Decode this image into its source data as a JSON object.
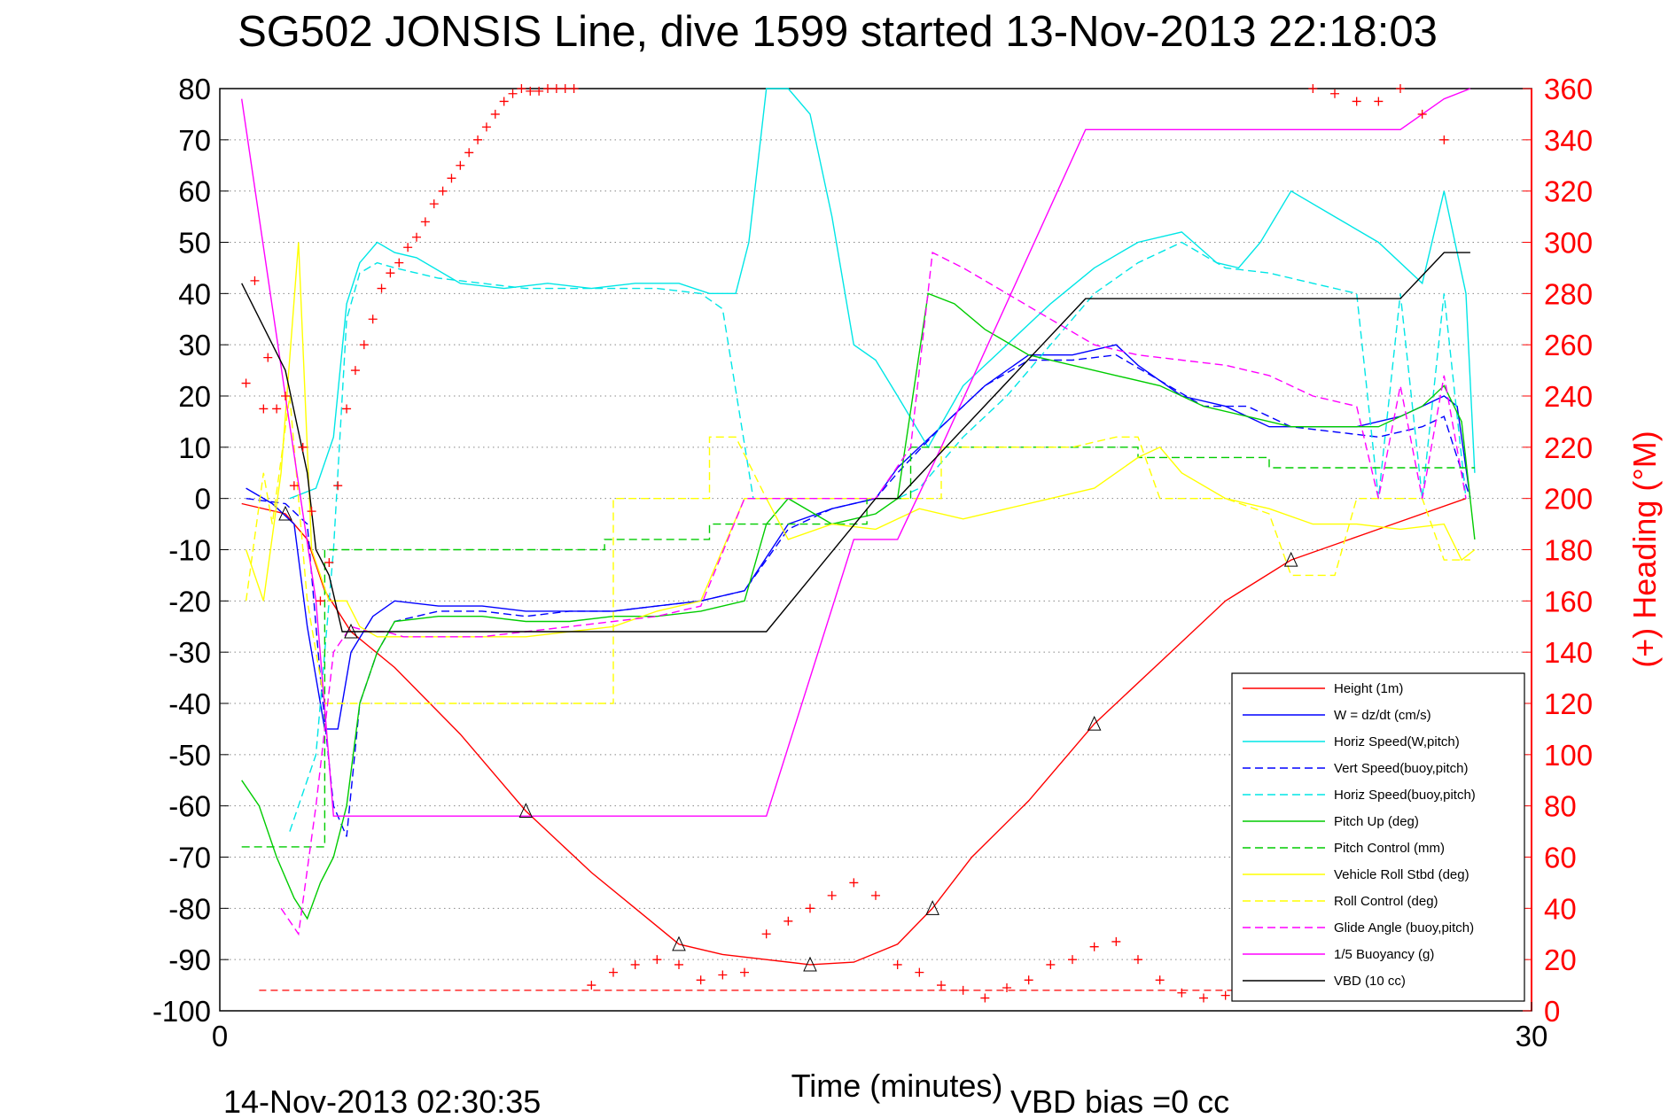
{
  "chart_data": {
    "type": "line",
    "title": "SG502 JONSIS Line, dive 1599 started 13-Nov-2013 22:18:03",
    "xlabel": "Time (minutes)",
    "ylabel_right": "(+) Heading (°M)",
    "footer_left": "14-Nov-2013 02:30:35",
    "footer_right": "VBD bias =0 cc",
    "xlim": [
      0,
      30
    ],
    "ylim": [
      -100,
      80
    ],
    "ylim_right": [
      0,
      360
    ],
    "x_ticks": [
      "0",
      "30"
    ],
    "y_ticks": [
      "80",
      "70",
      "60",
      "50",
      "40",
      "30",
      "20",
      "10",
      "0",
      "-10",
      "-20",
      "-30",
      "-40",
      "-50",
      "-60",
      "-70",
      "-80",
      "-90",
      "-100"
    ],
    "y_ticks_right": [
      "360",
      "340",
      "320",
      "300",
      "280",
      "260",
      "240",
      "220",
      "200",
      "180",
      "160",
      "140",
      "120",
      "100",
      "80",
      "60",
      "40",
      "20",
      "0"
    ],
    "grid": "horizontal dotted",
    "legend_position": "bottom-right",
    "colors": {
      "axis_right": "#ff0000",
      "height": "#ff0000",
      "w": "#0000ff",
      "horiz": "#00e6e6",
      "pitch": "#00cc00",
      "roll": "#ffff00",
      "glide": "#ff00ff",
      "buoyancy": "#ff00ff",
      "vbd": "#000000"
    },
    "legend": [
      {
        "label": "Height (1m)",
        "color": "#ff0000",
        "dash": "solid"
      },
      {
        "label": "W = dz/dt (cm/s)",
        "color": "#0000ff",
        "dash": "solid"
      },
      {
        "label": "Horiz Speed(W,pitch)",
        "color": "#00e6e6",
        "dash": "solid"
      },
      {
        "label": "Vert Speed(buoy,pitch)",
        "color": "#0000ff",
        "dash": "dashed"
      },
      {
        "label": "Horiz Speed(buoy,pitch)",
        "color": "#00e6e6",
        "dash": "dashed"
      },
      {
        "label": "Pitch Up (deg)",
        "color": "#00cc00",
        "dash": "solid"
      },
      {
        "label": "Pitch Control (mm)",
        "color": "#00cc00",
        "dash": "dashed"
      },
      {
        "label": "Vehicle Roll Stbd (deg)",
        "color": "#ffff00",
        "dash": "solid"
      },
      {
        "label": "Roll Control (deg)",
        "color": "#ffff00",
        "dash": "dashed"
      },
      {
        "label": "Glide Angle (buoy,pitch)",
        "color": "#ff00ff",
        "dash": "dashed"
      },
      {
        "label": "1/5 Buoyancy (g)",
        "color": "#ff00ff",
        "dash": "solid"
      },
      {
        "label": "VBD (10 cc)",
        "color": "#000000",
        "dash": "solid"
      }
    ],
    "series": [
      {
        "name": "Height (1m)",
        "color": "#ff0000",
        "dash": "solid",
        "x": [
          0.5,
          1.5,
          2.0,
          2.4,
          3.0,
          4.0,
          5.5,
          7.0,
          8.5,
          9.5,
          10.5,
          11.5,
          12.5,
          13.5,
          14.5,
          15.5,
          16.3,
          17.2,
          18.5,
          20.0,
          21.5,
          23.0,
          24.5,
          26.5,
          28.5
        ],
        "y": [
          -1,
          -3,
          -8,
          -18,
          -26,
          -33,
          -46,
          -61,
          -73,
          -80,
          -87,
          -89,
          -90,
          -91,
          -90.5,
          -87,
          -80,
          -70,
          -59,
          -44,
          -32,
          -20,
          -12,
          -6,
          0
        ]
      },
      {
        "name": "W = dz/dt (cm/s)",
        "color": "#0000ff",
        "dash": "solid",
        "x": [
          0.6,
          1.2,
          1.7,
          2.0,
          2.4,
          2.7,
          3.0,
          3.5,
          4.0,
          5.0,
          6.0,
          7.0,
          8.0,
          9.0,
          10.0,
          11.0,
          12.0,
          13.0,
          14.0,
          15.0,
          15.5,
          16.5,
          17.5,
          18.5,
          19.5,
          20.5,
          21.0,
          22.0,
          23.0,
          24.0,
          25.0,
          26.0,
          27.0,
          27.5,
          28.0,
          28.3,
          28.6
        ],
        "y": [
          2,
          -1,
          -5,
          -25,
          -45,
          -45,
          -30,
          -23,
          -20,
          -21,
          -21,
          -22,
          -22,
          -22,
          -21,
          -20,
          -18,
          -5,
          -2,
          0,
          6,
          14,
          22,
          28,
          28,
          30,
          26,
          20,
          18,
          14,
          14,
          14,
          16,
          18,
          20,
          18,
          0
        ]
      },
      {
        "name": "Horiz Speed(W,pitch)",
        "color": "#00e6e6",
        "dash": "solid",
        "x": [
          1.6,
          2.2,
          2.6,
          2.9,
          3.2,
          3.6,
          4.0,
          4.5,
          5.5,
          6.5,
          7.5,
          8.5,
          9.5,
          10.5,
          11.2,
          11.8,
          12.1,
          12.5,
          13.0,
          13.5,
          14.0,
          14.5,
          15.0,
          15.5,
          16.2,
          17.0,
          18.0,
          19.0,
          20.0,
          21.0,
          22.0,
          22.8,
          23.3,
          23.8,
          24.5,
          25.5,
          26.5,
          27.5,
          28.0,
          28.5,
          28.7
        ],
        "y": [
          0,
          2,
          12,
          38,
          46,
          50,
          48,
          47,
          42,
          41,
          42,
          41,
          42,
          42,
          40,
          40,
          50,
          80,
          80,
          75,
          55,
          30,
          27,
          20,
          10,
          22,
          30,
          38,
          45,
          50,
          52,
          46,
          45,
          50,
          60,
          55,
          50,
          42,
          60,
          40,
          5
        ]
      },
      {
        "name": "Vert Speed(buoy,pitch)",
        "color": "#0000ff",
        "dash": "dashed",
        "x": [
          0.6,
          1.5,
          2.0,
          2.3,
          2.6,
          2.9,
          3.2,
          3.6,
          4.0,
          5.0,
          6.0,
          7.0,
          8.0,
          9.0,
          10.0,
          11.0,
          12.0,
          13.0,
          14.0,
          15.0,
          15.5,
          16.5,
          17.5,
          18.5,
          19.5,
          20.5,
          21.5,
          22.5,
          23.5,
          24.5,
          25.5,
          26.5,
          27.5,
          28.0,
          28.6
        ],
        "y": [
          0,
          -1,
          -5,
          -35,
          -60,
          -66,
          -40,
          -30,
          -24,
          -22,
          -22,
          -23,
          -22,
          -22,
          -21,
          -20,
          -18,
          -6,
          -2,
          0,
          5,
          14,
          22,
          27,
          27,
          28,
          23,
          18,
          18,
          14,
          13,
          12,
          14,
          16,
          0
        ]
      },
      {
        "name": "Horiz Speed(buoy,pitch)",
        "color": "#00e6e6",
        "dash": "dashed",
        "x": [
          1.6,
          2.2,
          2.6,
          2.9,
          3.2,
          3.6,
          4.0,
          5.0,
          6.0,
          7.0,
          8.0,
          9.0,
          10.0,
          11.0,
          11.5,
          12.2,
          13.0,
          14.0,
          15.0,
          15.5,
          16.0,
          17.0,
          18.0,
          19.0,
          20.0,
          21.0,
          22.0,
          23.0,
          24.0,
          25.0,
          26.0,
          26.5,
          27.0,
          27.5,
          28.0,
          28.5
        ],
        "y": [
          -65,
          -50,
          -10,
          35,
          44,
          46,
          45,
          43,
          42,
          41,
          41,
          41,
          41,
          40,
          37,
          0,
          0,
          0,
          0,
          0,
          2,
          12,
          20,
          30,
          40,
          46,
          50,
          45,
          44,
          42,
          40,
          0,
          40,
          0,
          40,
          0
        ]
      },
      {
        "name": "Pitch Up (deg)",
        "color": "#00cc00",
        "dash": "solid",
        "x": [
          0.5,
          0.9,
          1.3,
          1.7,
          2.0,
          2.3,
          2.6,
          2.9,
          3.2,
          3.6,
          4.0,
          5.0,
          6.0,
          7.0,
          8.0,
          9.0,
          10.0,
          11.0,
          12.0,
          12.5,
          13.0,
          14.0,
          15.0,
          15.5,
          16.2,
          16.8,
          17.5,
          18.5,
          19.5,
          20.5,
          21.5,
          22.5,
          23.5,
          24.5,
          25.5,
          26.5,
          27.5,
          28.0,
          28.4,
          28.7
        ],
        "y": [
          -55,
          -60,
          -70,
          -78,
          -82,
          -75,
          -70,
          -60,
          -40,
          -30,
          -24,
          -23,
          -23,
          -24,
          -24,
          -23,
          -23,
          -22,
          -20,
          -5,
          0,
          -5,
          -3,
          0,
          40,
          38,
          33,
          28,
          26,
          24,
          22,
          18,
          16,
          14,
          14,
          14,
          18,
          22,
          15,
          -8
        ]
      },
      {
        "name": "Pitch Control (mm)",
        "color": "#00cc00",
        "dash": "dashed",
        "x": [
          0.5,
          2.4,
          2.4,
          8.8,
          8.8,
          11.2,
          11.2,
          14.8,
          14.8,
          15.8,
          15.8,
          21.0,
          21.0,
          24.0,
          24.0,
          28.7
        ],
        "y": [
          -68,
          -68,
          -10,
          -10,
          -8,
          -8,
          -5,
          -5,
          0,
          0,
          10,
          10,
          8,
          8,
          6,
          6
        ]
      },
      {
        "name": "Vehicle Roll Stbd (deg)",
        "color": "#ffff00",
        "dash": "solid",
        "x": [
          0.6,
          1.0,
          1.4,
          1.8,
          2.1,
          2.5,
          2.9,
          3.2,
          3.6,
          5.0,
          7.0,
          9.0,
          10.0,
          11.0,
          11.5,
          12.0,
          12.5,
          13.0,
          14.0,
          15.0,
          16.0,
          17.0,
          18.0,
          19.0,
          20.0,
          21.0,
          21.5,
          22.0,
          23.0,
          24.0,
          25.0,
          26.0,
          27.0,
          28.0,
          28.4,
          28.7
        ],
        "y": [
          -10,
          -20,
          5,
          50,
          -10,
          -20,
          -20,
          -25,
          -27,
          -27,
          -27,
          -25,
          -22,
          -20,
          -10,
          0,
          0,
          -8,
          -5,
          -6,
          -2,
          -4,
          -2,
          0,
          2,
          8,
          10,
          5,
          0,
          -2,
          -5,
          -5,
          -6,
          -5,
          -12,
          -10
        ]
      },
      {
        "name": "Roll Control (deg)",
        "color": "#ffff00",
        "dash": "dashed",
        "x": [
          0.6,
          1.0,
          1.2,
          1.6,
          2.0,
          2.4,
          2.8,
          3.6,
          5.0,
          7.0,
          9.0,
          9.0,
          11.2,
          11.2,
          11.8,
          12.5,
          12.5,
          16.5,
          16.5,
          19.5,
          20.5,
          21.0,
          21.5,
          23.0,
          24.0,
          24.5,
          25.5,
          26.0,
          26.5,
          27.5,
          28.0,
          28.6
        ],
        "y": [
          -20,
          5,
          -5,
          20,
          -20,
          -40,
          -40,
          -40,
          -40,
          -40,
          -40,
          0,
          0,
          12,
          12,
          0,
          0,
          0,
          10,
          10,
          12,
          12,
          0,
          0,
          -3,
          -15,
          -15,
          0,
          0,
          0,
          -12,
          -12
        ]
      },
      {
        "name": "Glide Angle (buoy,pitch)",
        "color": "#ff00ff",
        "dash": "dashed",
        "x": [
          1.4,
          1.8,
          2.2,
          2.6,
          3.0,
          3.4,
          3.8,
          4.2,
          5.0,
          6.0,
          7.0,
          8.0,
          9.0,
          10.0,
          11.0,
          12.0,
          13.0,
          14.0,
          15.0,
          15.8,
          16.3,
          17.0,
          18.0,
          19.0,
          20.0,
          21.0,
          22.0,
          23.0,
          24.0,
          25.0,
          26.0,
          26.5,
          27.0,
          27.5,
          28.0,
          28.5
        ],
        "y": [
          -80,
          -85,
          -60,
          -30,
          -25,
          -26,
          -26,
          -27,
          -27,
          -27,
          -26,
          -25,
          -24,
          -23,
          -21,
          0,
          0,
          0,
          0,
          10,
          48,
          45,
          40,
          35,
          30,
          28,
          27,
          26,
          24,
          20,
          18,
          0,
          22,
          0,
          24,
          0
        ]
      },
      {
        "name": "1/5 Buoyancy (g)",
        "color": "#ff00ff",
        "dash": "solid",
        "x": [
          0.5,
          1.5,
          2.2,
          2.6,
          3.0,
          3.4,
          4.0,
          8.5,
          12.5,
          14.5,
          15.5,
          16.5,
          19.8,
          27.0,
          27.5,
          28.0,
          28.6
        ],
        "y": [
          78,
          20,
          -20,
          -62,
          -62,
          -62,
          -62,
          -62,
          -62,
          -8,
          -8,
          10,
          72,
          72,
          75,
          78,
          80
        ]
      },
      {
        "name": "VBD (10 cc)",
        "color": "#000000",
        "dash": "solid",
        "x": [
          0.5,
          1.5,
          2.0,
          2.2,
          2.5,
          2.8,
          3.2,
          4.0,
          8.0,
          12.5,
          15.0,
          15.5,
          19.8,
          27.0,
          28.0,
          28.6
        ],
        "y": [
          42,
          25,
          5,
          -10,
          -15,
          -26,
          -26,
          -26,
          -26,
          -26,
          0,
          0,
          39,
          39,
          48,
          48
        ]
      }
    ],
    "heading_series": {
      "name": "Heading (+)",
      "axis": "right",
      "color": "#ff0000",
      "marker": "+",
      "x": [
        0.6,
        0.8,
        1.0,
        1.1,
        1.3,
        1.5,
        1.7,
        1.9,
        2.1,
        2.3,
        2.5,
        2.7,
        2.9,
        3.1,
        3.3,
        3.5,
        3.7,
        3.9,
        4.1,
        4.3,
        4.5,
        4.7,
        4.9,
        5.1,
        5.3,
        5.5,
        5.7,
        5.9,
        6.1,
        6.3,
        6.5,
        6.7,
        6.9,
        7.1,
        7.3,
        7.5,
        7.7,
        7.9,
        8.1,
        8.5,
        9.0,
        9.5,
        10.0,
        10.5,
        11.0,
        11.5,
        12.0,
        12.5,
        13.0,
        13.5,
        14.0,
        14.5,
        15.0,
        15.5,
        16.0,
        16.5,
        17.0,
        17.5,
        18.0,
        18.5,
        19.0,
        19.5,
        20.0,
        20.5,
        21.0,
        21.5,
        22.0,
        22.5,
        23.0,
        23.5,
        24.0,
        24.5,
        25.0,
        25.5,
        26.0,
        26.5,
        27.0,
        27.5,
        28.0,
        28.5
      ],
      "y": [
        245,
        285,
        235,
        255,
        235,
        240,
        205,
        220,
        195,
        160,
        175,
        205,
        235,
        250,
        260,
        270,
        282,
        288,
        292,
        298,
        302,
        308,
        315,
        320,
        325,
        330,
        335,
        340,
        345,
        350,
        355,
        358,
        360,
        359,
        359,
        360,
        360,
        360,
        360,
        10,
        15,
        18,
        20,
        18,
        12,
        14,
        15,
        30,
        35,
        40,
        45,
        50,
        45,
        18,
        15,
        10,
        8,
        5,
        9,
        12,
        18,
        20,
        25,
        27,
        20,
        12,
        7,
        5,
        6,
        7,
        8,
        8,
        360,
        358,
        355,
        355,
        360,
        350,
        340,
        7
      ]
    },
    "reference_line": {
      "axis": "right",
      "value": 8,
      "x": [
        0.9,
        28.7
      ],
      "color": "#ff0000",
      "dash": "dashed"
    }
  }
}
